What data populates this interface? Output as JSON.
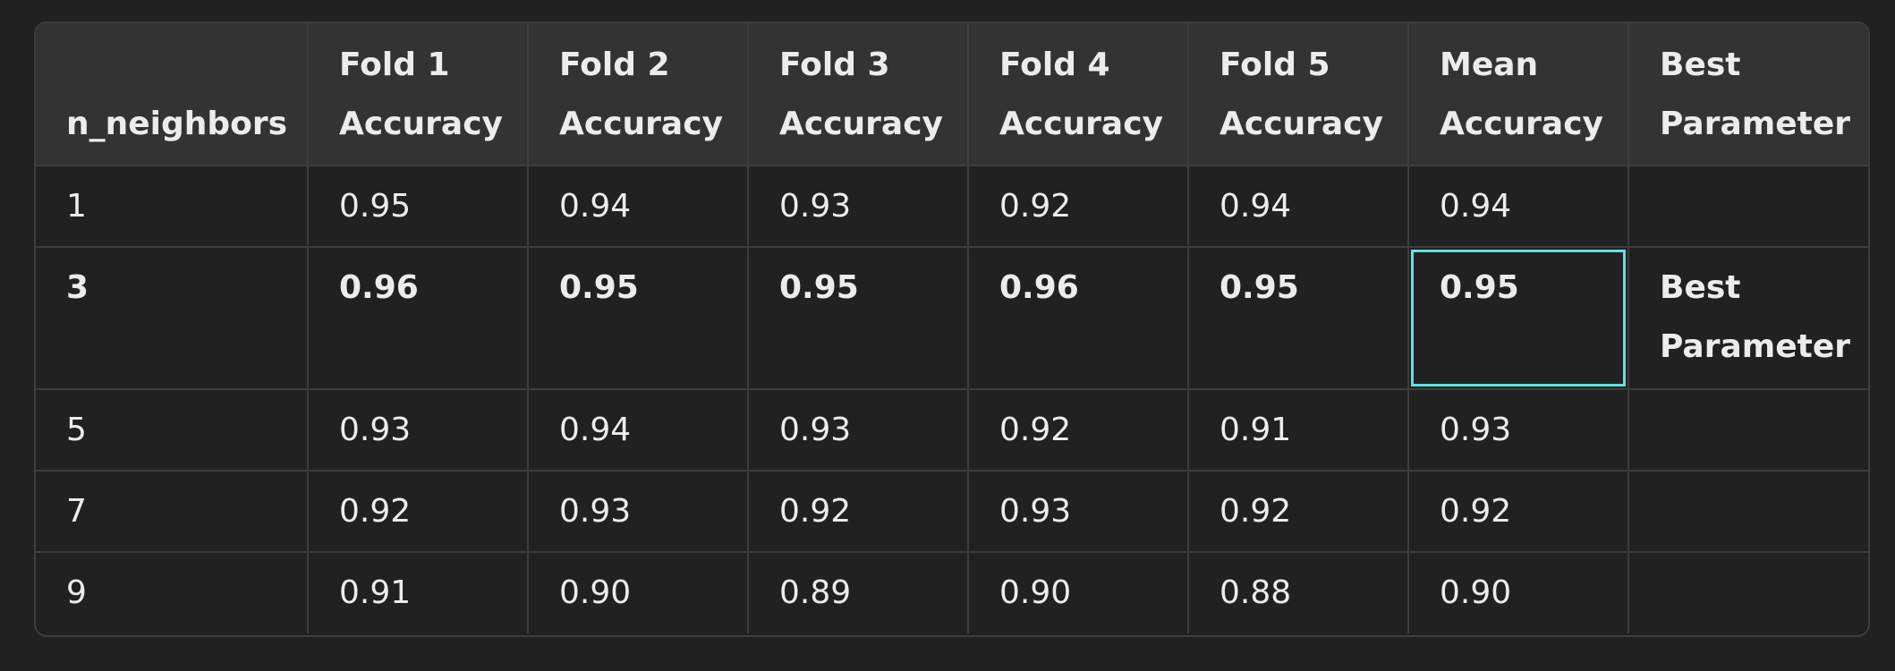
{
  "table": {
    "headers": [
      [
        "n_neighbors"
      ],
      [
        "Fold 1",
        "Accuracy"
      ],
      [
        "Fold 2",
        "Accuracy"
      ],
      [
        "Fold 3",
        "Accuracy"
      ],
      [
        "Fold 4",
        "Accuracy"
      ],
      [
        "Fold 5",
        "Accuracy"
      ],
      [
        "Mean",
        "Accuracy"
      ],
      [
        "Best",
        "Parameter"
      ]
    ],
    "rows": [
      {
        "n": "1",
        "f1": "0.95",
        "f2": "0.94",
        "f3": "0.93",
        "f4": "0.92",
        "f5": "0.94",
        "mean": "0.94",
        "best": ""
      },
      {
        "n": "3",
        "f1": "0.96",
        "f2": "0.95",
        "f3": "0.95",
        "f4": "0.96",
        "f5": "0.95",
        "mean": "0.95",
        "best": "Best Parameter"
      },
      {
        "n": "5",
        "f1": "0.93",
        "f2": "0.94",
        "f3": "0.93",
        "f4": "0.92",
        "f5": "0.91",
        "mean": "0.93",
        "best": ""
      },
      {
        "n": "7",
        "f1": "0.92",
        "f2": "0.93",
        "f3": "0.92",
        "f4": "0.93",
        "f5": "0.92",
        "mean": "0.92",
        "best": ""
      },
      {
        "n": "9",
        "f1": "0.91",
        "f2": "0.90",
        "f3": "0.89",
        "f4": "0.90",
        "f5": "0.88",
        "mean": "0.90",
        "best": ""
      }
    ]
  },
  "colors": {
    "background": "#212121",
    "header_bg": "#333333",
    "border": "#3d3d3d",
    "text": "#ececec",
    "highlight": "#5ee3e0"
  }
}
